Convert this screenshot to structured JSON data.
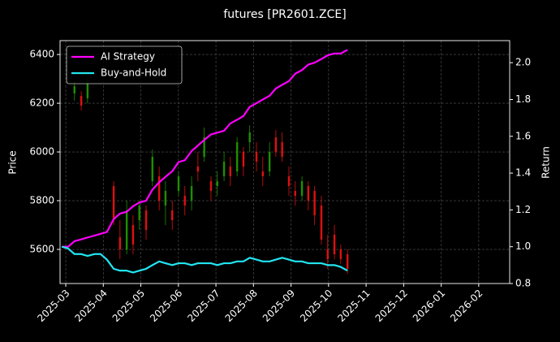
{
  "chart_data": {
    "type": "candlestick",
    "title": "futures [PR2601.ZCE]",
    "ylabel": "Price",
    "y2label": "Return",
    "x": [
      2025.158,
      2025.172,
      2025.186,
      2025.201,
      2025.215,
      2025.23,
      2025.244,
      2025.258,
      2025.273,
      2025.287,
      2025.302,
      2025.316,
      2025.33,
      2025.345,
      2025.359,
      2025.374,
      2025.388,
      2025.403,
      2025.417,
      2025.431,
      2025.446,
      2025.46,
      2025.474,
      2025.489,
      2025.503,
      2025.518,
      2025.532,
      2025.547,
      2025.561,
      2025.575,
      2025.59,
      2025.604,
      2025.619,
      2025.633,
      2025.647,
      2025.662,
      2025.676,
      2025.691,
      2025.705,
      2025.719,
      2025.734,
      2025.748,
      2025.763,
      2025.777,
      2025.792
    ],
    "open": [
      null,
      null,
      6240,
      6230,
      6220,
      null,
      null,
      null,
      5860,
      5650,
      5600,
      5700,
      5720,
      5760,
      5880,
      5900,
      5780,
      5760,
      5840,
      5820,
      5800,
      5940,
      5980,
      5880,
      5860,
      5900,
      5940,
      5920,
      6000,
      6040,
      6000,
      5920,
      5920,
      6060,
      6040,
      5900,
      5840,
      5820,
      5860,
      5840,
      5780,
      5600,
      5660,
      5600,
      5580
    ],
    "high": [
      null,
      null,
      6290,
      6250,
      6300,
      null,
      null,
      null,
      5880,
      5720,
      5800,
      5740,
      5800,
      5780,
      6010,
      5940,
      5880,
      5800,
      5920,
      5860,
      5900,
      6000,
      6100,
      5900,
      5920,
      6000,
      5980,
      6060,
      6020,
      6110,
      6040,
      5980,
      6040,
      6090,
      6080,
      5940,
      5880,
      5900,
      5880,
      5860,
      5820,
      5660,
      5700,
      5620,
      5600
    ],
    "low": [
      null,
      null,
      6210,
      6170,
      6200,
      null,
      null,
      null,
      5700,
      5560,
      5580,
      5580,
      5680,
      5640,
      5860,
      5760,
      5700,
      5680,
      5820,
      5740,
      5760,
      5880,
      5960,
      5800,
      5820,
      5880,
      5860,
      5900,
      5900,
      6000,
      5920,
      5860,
      5900,
      5980,
      5960,
      5820,
      5780,
      5800,
      5760,
      5700,
      5620,
      5520,
      5560,
      5540,
      5500
    ],
    "close": [
      null,
      null,
      6270,
      6190,
      6280,
      null,
      null,
      null,
      5720,
      5600,
      5760,
      5620,
      5780,
      5680,
      5980,
      5800,
      5840,
      5720,
      5900,
      5780,
      5860,
      5920,
      6060,
      5840,
      5880,
      5960,
      5900,
      6040,
      5940,
      6080,
      5960,
      5900,
      6000,
      6000,
      5980,
      5860,
      5820,
      5880,
      5800,
      5740,
      5640,
      5560,
      5580,
      5560,
      5520
    ],
    "up_color": "#1f8f00",
    "down_color": "#e01010",
    "series": [
      {
        "name": "AI Strategy",
        "color": "#ff00ff",
        "axis": "y2",
        "values": [
          1.0,
          1.0,
          1.03,
          1.04,
          1.05,
          1.06,
          1.07,
          1.08,
          1.15,
          1.18,
          1.19,
          1.22,
          1.24,
          1.25,
          1.31,
          1.35,
          1.38,
          1.41,
          1.46,
          1.47,
          1.52,
          1.55,
          1.58,
          1.61,
          1.62,
          1.63,
          1.67,
          1.69,
          1.71,
          1.76,
          1.78,
          1.8,
          1.82,
          1.86,
          1.88,
          1.9,
          1.94,
          1.96,
          1.99,
          2.0,
          2.02,
          2.04,
          2.05,
          2.05,
          2.07
        ]
      },
      {
        "name": "Buy-and-Hold",
        "color": "#22e5f0",
        "axis": "y2",
        "values": [
          1.0,
          0.99,
          0.96,
          0.96,
          0.95,
          0.96,
          0.96,
          0.93,
          0.88,
          0.87,
          0.87,
          0.86,
          0.87,
          0.88,
          0.9,
          0.92,
          0.91,
          0.9,
          0.91,
          0.91,
          0.9,
          0.91,
          0.91,
          0.91,
          0.9,
          0.91,
          0.91,
          0.92,
          0.92,
          0.94,
          0.93,
          0.92,
          0.92,
          0.93,
          0.94,
          0.93,
          0.92,
          0.92,
          0.91,
          0.91,
          0.91,
          0.9,
          0.9,
          0.89,
          0.87
        ]
      }
    ],
    "xlim": [
      2025.154,
      2026.152
    ],
    "xticks": [
      {
        "value": 2025.1667,
        "label": "2025-03"
      },
      {
        "value": 2025.25,
        "label": "2025-04"
      },
      {
        "value": 2025.3333,
        "label": "2025-05"
      },
      {
        "value": 2025.4167,
        "label": "2025-06"
      },
      {
        "value": 2025.5,
        "label": "2025-07"
      },
      {
        "value": 2025.5833,
        "label": "2025-08"
      },
      {
        "value": 2025.6667,
        "label": "2025-09"
      },
      {
        "value": 2025.75,
        "label": "2025-10"
      },
      {
        "value": 2025.8333,
        "label": "2025-11"
      },
      {
        "value": 2025.9167,
        "label": "2025-12"
      },
      {
        "value": 2026.0,
        "label": "2026-01"
      },
      {
        "value": 2026.0833,
        "label": "2026-02"
      }
    ],
    "ylim": [
      5460,
      6457
    ],
    "yticks": [
      5600,
      5800,
      6000,
      6200,
      6400
    ],
    "y2lim": [
      0.8,
      2.12
    ],
    "y2ticks": [
      0.8,
      {
        "value": 1.0,
        "label": "1.0"
      },
      1.2,
      1.4,
      1.6,
      1.8,
      {
        "value": 2.0,
        "label": "2.0"
      }
    ],
    "grid": true,
    "legend": "upper left"
  }
}
